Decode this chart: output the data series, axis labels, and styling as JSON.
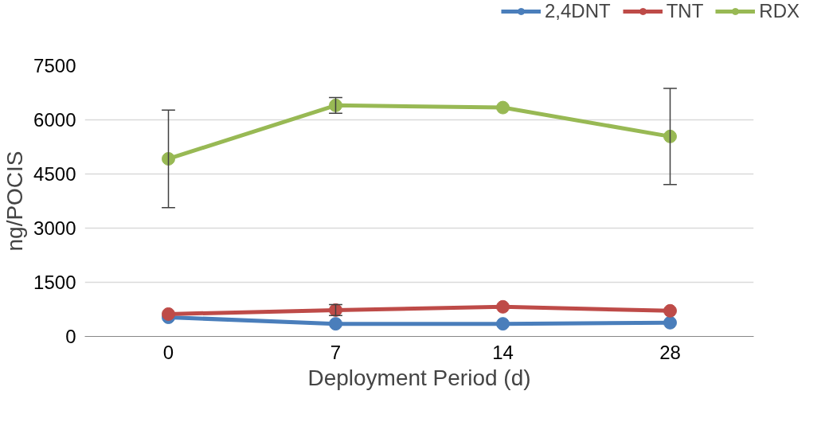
{
  "chart_data": {
    "type": "line",
    "xlabel": "Deployment Period (d)",
    "ylabel": "ng/POCIS",
    "categories": [
      "0",
      "7",
      "14",
      "28"
    ],
    "series": [
      {
        "name": "2,4DNT",
        "color": "#4a7ebb",
        "values": [
          530,
          350,
          350,
          380
        ]
      },
      {
        "name": "TNT",
        "color": "#be4b48",
        "values": [
          620,
          730,
          820,
          710
        ],
        "errors": [
          null,
          150,
          null,
          null
        ]
      },
      {
        "name": "RDX",
        "color": "#98b954",
        "values": [
          4920,
          6400,
          6340,
          5540
        ],
        "errors": [
          1350,
          220,
          null,
          1330
        ]
      }
    ],
    "ylim": [
      0,
      7500
    ],
    "yticks": [
      0,
      1500,
      3000,
      4500,
      6000,
      7500
    ],
    "grid": "y",
    "legend": "top right",
    "marker": "circle",
    "line_style": "solid"
  }
}
